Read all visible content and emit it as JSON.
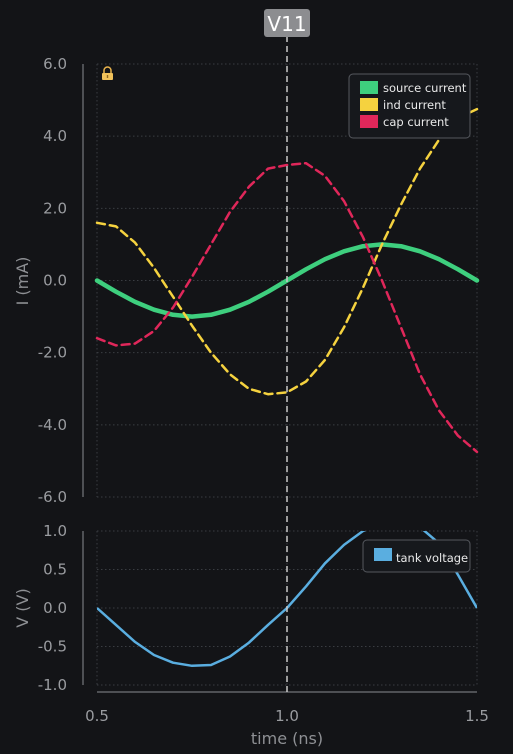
{
  "chart_data": [
    {
      "type": "line",
      "ylabel": "I (mA)",
      "ylim": [
        -6,
        6
      ],
      "yticks": [
        "6.0",
        "4.0",
        "2.0",
        "0.0",
        "-2.0",
        "-4.0",
        "-6.0"
      ],
      "grid": true,
      "legend_position": "top-right",
      "lock_icon": "lock-icon",
      "series": [
        {
          "name": "source current",
          "color": "#3ecf7e",
          "style": "solid",
          "x": [
            0.5,
            0.55,
            0.6,
            0.65,
            0.7,
            0.75,
            0.8,
            0.85,
            0.9,
            0.95,
            1.0,
            1.05,
            1.1,
            1.15,
            1.2,
            1.25,
            1.3,
            1.35,
            1.4,
            1.45,
            1.5
          ],
          "y": [
            0.0,
            -0.31,
            -0.59,
            -0.81,
            -0.95,
            -1.0,
            -0.95,
            -0.81,
            -0.59,
            -0.31,
            0.0,
            0.31,
            0.59,
            0.81,
            0.95,
            1.0,
            0.95,
            0.81,
            0.59,
            0.31,
            0.0
          ]
        },
        {
          "name": "ind current",
          "color": "#f5d23f",
          "style": "dashed",
          "x": [
            0.5,
            0.55,
            0.6,
            0.65,
            0.7,
            0.75,
            0.8,
            0.85,
            0.9,
            0.95,
            1.0,
            1.05,
            1.1,
            1.15,
            1.2,
            1.25,
            1.3,
            1.35,
            1.4,
            1.45,
            1.5
          ],
          "y": [
            1.6,
            1.5,
            1.05,
            0.35,
            -0.45,
            -1.25,
            -2.0,
            -2.6,
            -3.0,
            -3.15,
            -3.1,
            -2.8,
            -2.2,
            -1.3,
            -0.2,
            1.0,
            2.1,
            3.1,
            3.9,
            4.5,
            4.75
          ]
        },
        {
          "name": "cap current",
          "color": "#e0275a",
          "style": "dashed",
          "x": [
            0.5,
            0.55,
            0.6,
            0.65,
            0.7,
            0.75,
            0.8,
            0.85,
            0.9,
            0.95,
            1.0,
            1.05,
            1.1,
            1.15,
            1.2,
            1.25,
            1.3,
            1.35,
            1.4,
            1.45,
            1.5
          ],
          "y": [
            -1.6,
            -1.8,
            -1.75,
            -1.4,
            -0.75,
            0.1,
            1.0,
            1.9,
            2.6,
            3.1,
            3.2,
            3.25,
            2.9,
            2.2,
            1.2,
            0.0,
            -1.3,
            -2.6,
            -3.6,
            -4.3,
            -4.75
          ]
        }
      ]
    },
    {
      "type": "line",
      "xlabel": "time (ns)",
      "ylabel": "V (V)",
      "xlim": [
        0.5,
        1.5
      ],
      "ylim": [
        -1.0,
        1.0
      ],
      "xticks": [
        "0.5",
        "1.0",
        "1.5"
      ],
      "yticks": [
        "1.0",
        "0.5",
        "0.0",
        "-0.5",
        "-1.0"
      ],
      "grid": true,
      "legend_position": "top-right",
      "series": [
        {
          "name": "tank voltage",
          "color": "#5aaee0",
          "style": "solid",
          "x": [
            0.5,
            0.55,
            0.6,
            0.65,
            0.7,
            0.75,
            0.8,
            0.85,
            0.9,
            0.95,
            1.0,
            1.05,
            1.1,
            1.15,
            1.2,
            1.25,
            1.3,
            1.35,
            1.4,
            1.45,
            1.5
          ],
          "y": [
            0.0,
            -0.22,
            -0.44,
            -0.61,
            -0.71,
            -0.75,
            -0.74,
            -0.63,
            -0.45,
            -0.22,
            0.0,
            0.28,
            0.58,
            0.82,
            1.0,
            1.1,
            1.11,
            1.05,
            0.84,
            0.43,
            0.0
          ]
        }
      ]
    }
  ],
  "cursor": {
    "label": "V11",
    "x": 1.0,
    "color": "#c9c9c9"
  },
  "colors": {
    "background": "#131417",
    "grid": "#3a3d42",
    "axis": "#8a8c90",
    "legend_bg": "#16181c",
    "legend_border": "#55585e"
  }
}
